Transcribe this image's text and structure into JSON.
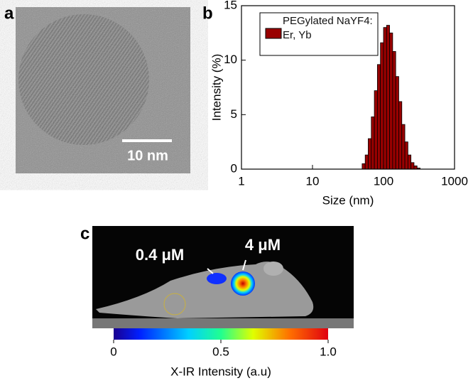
{
  "panels": {
    "a": {
      "label": "a",
      "scale_bar": "10 nm"
    },
    "b": {
      "label": "b"
    },
    "c": {
      "label": "c",
      "annotations": [
        "0.4 μM",
        "4 μM"
      ]
    }
  },
  "colorbar": {
    "ticks": [
      0,
      0.5,
      {
        "value": 1,
        "label": "1.0"
      }
    ],
    "lim": [
      0,
      1
    ],
    "label": "X-IR Intensity (a.u)"
  },
  "chart_data": {
    "type": "histogram",
    "xlabel": "Size (nm)",
    "ylabel": "Intensity (%)",
    "xscale": "log",
    "xlim": [
      1,
      1000
    ],
    "xticks": [
      1,
      10,
      100,
      1000
    ],
    "ylim": [
      0,
      15
    ],
    "yticks": [
      0,
      5,
      10,
      15
    ],
    "bins": [
      50,
      55.2,
      60.9,
      67.3,
      74.3,
      82,
      90.5,
      100,
      110.4,
      121.8,
      134.5,
      148.5,
      163.9,
      181,
      199.8,
      220.6,
      243.5,
      268.8,
      296.8,
      327.7
    ],
    "series": [
      {
        "name": "PEGylated NaYF4: Er, Yb",
        "color": "#990000",
        "values": [
          0.5,
          1.3,
          2.8,
          4.8,
          7.2,
          9.6,
          11.6,
          13,
          13.2,
          12.5,
          10.8,
          8.5,
          6.2,
          4.1,
          2.5,
          1.3,
          0.6,
          0.3,
          0.1
        ]
      }
    ]
  }
}
